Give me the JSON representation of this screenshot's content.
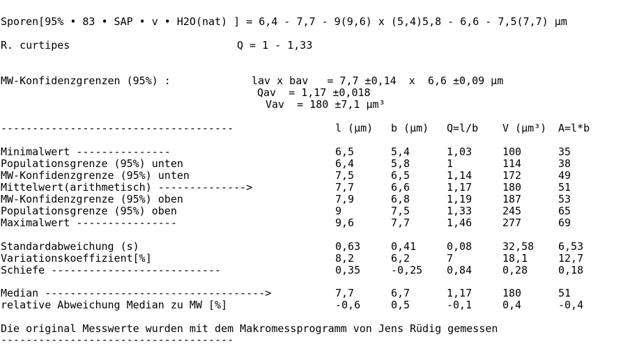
{
  "formula": "Sporen[95% • 83 • SAP • v • H2O(nat) ] = 6,4 - 7,7 - 9(9,6) x (5,4)5,8 - 6,6 - 7,5(7,7) µm",
  "species": "R. curtipes",
  "q_range": "Q = 1 - 1,33",
  "confidence_label": "MW-Konfidenzgrenzen (95%) :",
  "lav_bav": "lav x bav   = 7,7 ±0,14  x  6,6 ±0,09 µm",
  "qav": "Qav  = 1,17 ±0,018",
  "vav": "Vav  = 180 ±7,1 µm³",
  "header_dashes": "-------------------------------------",
  "columns": [
    "l (µm)",
    "b (µm)",
    "Q=l/b",
    "V (µm³)",
    "A=l*b"
  ],
  "rows_block1": [
    {
      "label": "Minimalwert ---------------",
      "values": [
        "6,5",
        "5,4",
        "1,03",
        "100",
        "35"
      ]
    },
    {
      "label": "Populationsgrenze (95%) unten",
      "values": [
        "6,4",
        "5,8",
        "1",
        "114",
        "38"
      ]
    },
    {
      "label": "MW-Konfidenzgrenze (95%) unten",
      "values": [
        "7,5",
        "6,5",
        "1,14",
        "172",
        "49"
      ]
    },
    {
      "label": "Mittelwert(arithmetisch) -------------->",
      "values": [
        "7,7",
        "6,6",
        "1,17",
        "180",
        "51"
      ]
    },
    {
      "label": "MW-Konfidenzgrenze (95%) oben",
      "values": [
        "7,9",
        "6,8",
        "1,19",
        "187",
        "53"
      ]
    },
    {
      "label": "Populationsgrenze (95%) oben",
      "values": [
        "9",
        "7,5",
        "1,33",
        "245",
        "65"
      ]
    },
    {
      "label": "Maximalwert ----------------",
      "values": [
        "9,6",
        "7,7",
        "1,46",
        "277",
        "69"
      ]
    }
  ],
  "rows_block2": [
    {
      "label": "Standardabweichung (s)",
      "values": [
        "0,63",
        "0,41",
        "0,08",
        "32,58",
        "6,53"
      ]
    },
    {
      "label": "Variationskoeffizient[%]",
      "values": [
        "8,2",
        "6,2",
        "7",
        "18,1",
        "12,7"
      ]
    },
    {
      "label": "Schiefe ---------------------------",
      "values": [
        "0,35",
        "-0,25",
        "0,84",
        "0,28",
        "0,18"
      ]
    }
  ],
  "rows_block3": [
    {
      "label": "Median ----------------------------------->",
      "values": [
        "7,7",
        "6,7",
        "1,17",
        "180",
        "51"
      ]
    },
    {
      "label": "relative Abweichung Median zu MW [%]",
      "values": [
        "-0,6",
        "0,5",
        "-0,1",
        "0,4",
        "-0,4"
      ]
    }
  ],
  "footer_text": "Die original Messwerte wurden mit dem Makromessprogramm von Jens Rüdig gemessen",
  "footer_dashes": "-------------------------------------"
}
